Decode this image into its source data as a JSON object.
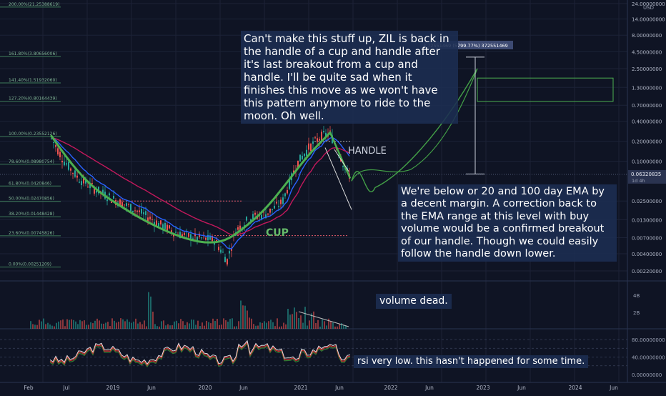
{
  "chart_data": {
    "type": "line",
    "panes": [
      "price",
      "volume",
      "rsi"
    ],
    "y_scale": "log",
    "price_unit": "USD",
    "last_price": "0.06320835",
    "timeframe_label": "1d 4h",
    "price_axis_ticks": [
      "24.00000000",
      "14.00000000",
      "8.00000000",
      "4.50000000",
      "2.50000000",
      "1.30000000",
      "0.70000000",
      "0.40000000",
      "0.20000000",
      "0.10000000",
      "0.02500000",
      "0.01300000",
      "0.00700000",
      "0.00400000",
      "0.00220000"
    ],
    "price_axis_values": [
      24,
      14,
      8,
      4.5,
      2.5,
      1.3,
      0.7,
      0.4,
      0.2,
      0.1,
      0.025,
      0.013,
      0.007,
      0.004,
      0.0022
    ],
    "time_axis_labels": [
      "Feb",
      "Jul",
      "2019",
      "Jun",
      "2020",
      "Jun",
      "2021",
      "Jun",
      "2022",
      "Jun",
      "2023",
      "Jun",
      "2024",
      "Jun"
    ],
    "fib_levels": [
      {
        "label": "200.00%(21.25388619)",
        "value": 21.25388619
      },
      {
        "label": "161.80%(3.80656006)",
        "value": 3.80656006
      },
      {
        "label": "141.40%(1.51932060)",
        "value": 1.5193206
      },
      {
        "label": "127.20%(0.80164439)",
        "value": 0.80164439
      },
      {
        "label": "100.00%(0.23552126)",
        "value": 0.23552126
      },
      {
        "label": "78.60%(0.08980754)",
        "value": 0.08980754
      },
      {
        "label": "61.80%(0.0420846)",
        "value": 0.0420846
      },
      {
        "label": "50.00%(0.02470856)",
        "value": 0.02470856
      },
      {
        "label": "38.20%(0.01448428)",
        "value": 0.01448428
      },
      {
        "label": "23.60%(0.00745826)",
        "value": 0.00745826
      },
      {
        "label": "0.00%(0.00251209)",
        "value": 0.00251209
      }
    ],
    "measure_label": "3.72551469 (5799.77%) 372551469",
    "pattern_labels": {
      "cup": "CUP",
      "handle": "HANDLE"
    },
    "volume_axis_ticks": [
      "4B",
      "2B"
    ],
    "rsi_axis_ticks": [
      "80.00000000",
      "40.00000000",
      "0.00000000"
    ],
    "rsi_axis_values": [
      80,
      40,
      0
    ],
    "annotations": {
      "top": "Can't make this stuff up, ZIL is back in the handle of a cup and handle after it's last breakout from a cup and handle. I'll be quite sad when it finishes this move as we won't have this pattern anymore to ride to the moon. Oh well.",
      "right": "We're below or 20 and 100 day EMA by a decent margin. A correction back to the EMA range at this level with buy volume would be a confirmed breakout of our handle. Though we could easily follow the handle down lower.",
      "volume": "volume dead.",
      "rsi": "rsi very low. this hasn't happened for some time."
    },
    "colors": {
      "background": "#0f1424",
      "cup_line": "#4caf50",
      "projection": "#43a047",
      "fib": "#3e7d5a",
      "ema20": "#2962ff",
      "ema100": "#c2185b",
      "candle_up": "#26a69a",
      "candle_down": "#ef5350",
      "rsi_white": "#e0e0e0",
      "rsi_red": "#d32f2f",
      "rsi_green": "#2e7d32"
    }
  }
}
